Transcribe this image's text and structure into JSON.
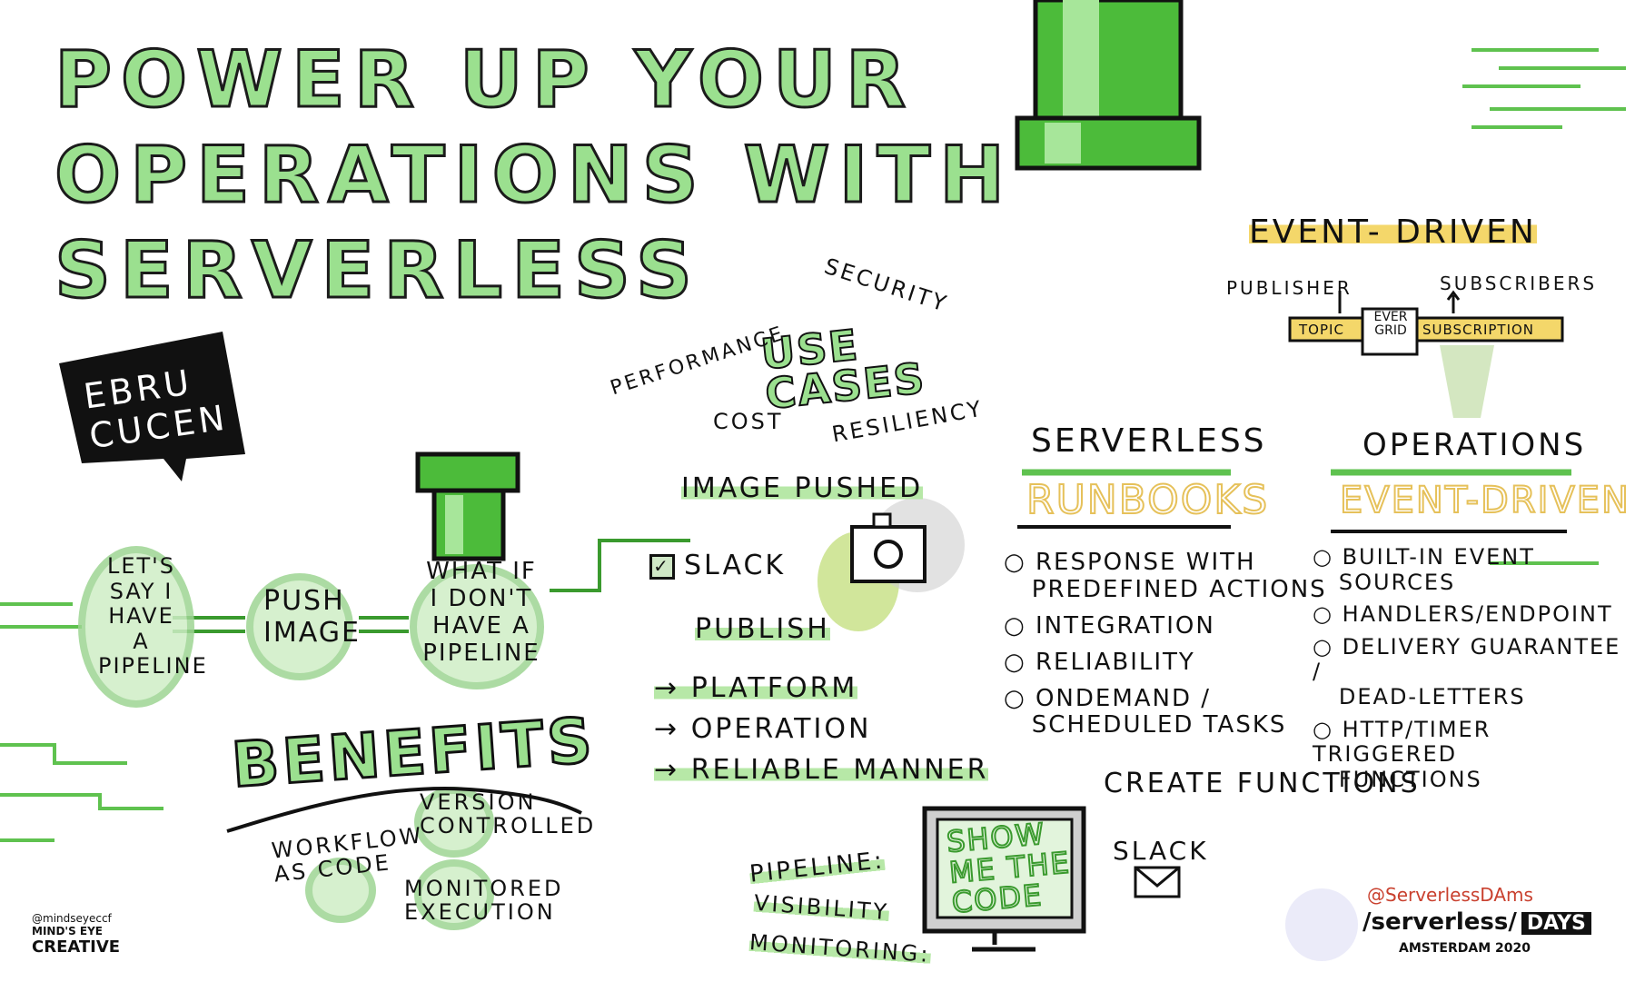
{
  "title": {
    "line1": "POWER UP YOUR",
    "line2": "OPERATIONS WITH",
    "line3": "SERVERLESS"
  },
  "speaker": {
    "name_line1": "EBRU",
    "name_line2": "CUCEN"
  },
  "use_cases": {
    "title_line1": "USE",
    "title_line2": "CASES",
    "security": "SECURITY",
    "performance": "PERFORMANCE",
    "cost": "COST",
    "resiliency": "RESILIENCY"
  },
  "flow": {
    "circle1": [
      "LET'S",
      "SAY I",
      "HAVE",
      "A",
      "PIPELINE"
    ],
    "circle2": [
      "PUSH",
      "IMAGE"
    ],
    "circle3": [
      "WHAT IF",
      "I DON'T",
      "HAVE A",
      "PIPELINE"
    ]
  },
  "image_flow": {
    "image_pushed": "IMAGE PUSHED",
    "slack": "SLACK",
    "publish": "PUBLISH",
    "platform": "PLATFORM",
    "operation": "OPERATION",
    "reliable_manner": "RELIABLE MANNER"
  },
  "benefits": {
    "title": "BENEFITS",
    "workflow_line1": "WORKFLOW",
    "workflow_line2": "AS CODE",
    "version_line1": "VERSION",
    "version_line2": "CONTROLLED",
    "monitored_line1": "MONITORED",
    "monitored_line2": "EXECUTION"
  },
  "event_driven_top": {
    "title": "EVENT- DRIVEN",
    "publisher": "PUBLISHER",
    "subscribers": "SUBSCRIBERS",
    "ever_line1": "EVER",
    "ever_line2": "GRID",
    "topic": "TOPIC",
    "subscription": "SUBSCRIPTION"
  },
  "runbooks": {
    "heading": "SERVERLESS",
    "title": "RUNBOOKS",
    "items": [
      [
        "RESPONSE WITH",
        "PREDEFINED ACTIONS"
      ],
      [
        "INTEGRATION"
      ],
      [
        "RELIABILITY"
      ],
      [
        "ONDEMAND /",
        "SCHEDULED TASKS"
      ]
    ]
  },
  "operations": {
    "heading": "OPERATIONS",
    "title": "EVENT-DRIVEN",
    "items": [
      [
        "BUILT-IN EVENT",
        "SOURCES"
      ],
      [
        "HANDLERS/ENDPOINT"
      ],
      [
        "DELIVERY GUARANTEE /",
        "DEAD-LETTERS"
      ],
      [
        "HTTP/TIMER TRIGGERED",
        "FUNCTIONS"
      ]
    ]
  },
  "code": {
    "show_line1": "SHOW",
    "show_line2": "ME THE",
    "show_line3": "CODE",
    "create_functions": "CREATE FUNCTIONS",
    "slack": "SLACK",
    "pipeline": "PIPELINE:",
    "visibility": "VISIBILITY",
    "monitoring": "MONITORING:"
  },
  "footer": {
    "credit_handle": "@mindseyeccf",
    "credit_line1": "MIND'S EYE",
    "credit_line2": "CREATIVE",
    "event_handle": "@ServerlessDAms",
    "event_brand": "/serverless/",
    "event_days": "DAYS",
    "event_city": "AMSTERDAM 2020"
  },
  "colors": {
    "green": "#5fc24f",
    "light_green": "#b7e8a7",
    "yellow": "#f4d76a",
    "outline_yellow": "#e6c15a",
    "ink": "#111111"
  }
}
